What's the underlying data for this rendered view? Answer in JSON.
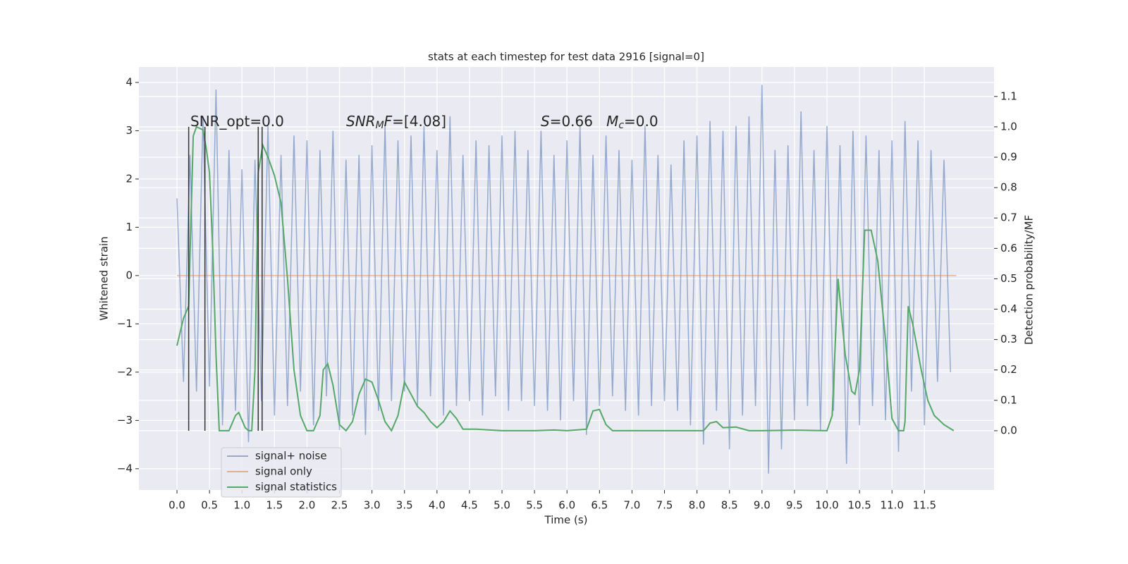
{
  "chart_data": {
    "type": "line",
    "title": "stats at each timestep for test data 2916 [signal=0]",
    "xlabel": "Time (s)",
    "ylabel": "Whitened strain",
    "y2label": "Detection probability/MF",
    "xlim": [
      -0.586,
      12.57
    ],
    "ylim": [
      -4.44,
      4.32
    ],
    "y2lim": [
      -0.195,
      1.197
    ],
    "grid": true,
    "legend": "lower left",
    "xticks": [
      {
        "value": 0,
        "label": "0.0"
      },
      {
        "value": 0.5,
        "label": "0.5"
      },
      {
        "value": 1,
        "label": "1.0"
      },
      {
        "value": 1.5,
        "label": "1.5"
      },
      {
        "value": 2,
        "label": "2.0"
      },
      {
        "value": 2.5,
        "label": "2.5"
      },
      {
        "value": 3,
        "label": "3.0"
      },
      {
        "value": 3.5,
        "label": "3.5"
      },
      {
        "value": 4,
        "label": "4.0"
      },
      {
        "value": 4.5,
        "label": "4.5"
      },
      {
        "value": 5,
        "label": "5.0"
      },
      {
        "value": 5.5,
        "label": "5.5"
      },
      {
        "value": 6,
        "label": "6.0"
      },
      {
        "value": 6.5,
        "label": "6.5"
      },
      {
        "value": 7,
        "label": "7.0"
      },
      {
        "value": 7.5,
        "label": "7.5"
      },
      {
        "value": 8,
        "label": "8.0"
      },
      {
        "value": 8.5,
        "label": "8.5"
      },
      {
        "value": 9,
        "label": "9.0"
      },
      {
        "value": 9.5,
        "label": "9.5"
      },
      {
        "value": 10,
        "label": "10.0"
      },
      {
        "value": 10.5,
        "label": "10.5"
      },
      {
        "value": 11,
        "label": "11.0"
      },
      {
        "value": 11.5,
        "label": "11.5"
      }
    ],
    "yticks": [
      {
        "value": -4,
        "label": "−4"
      },
      {
        "value": -3,
        "label": "−3"
      },
      {
        "value": -2,
        "label": "−2"
      },
      {
        "value": -1,
        "label": "−1"
      },
      0,
      1,
      2,
      3,
      4
    ],
    "y2ticks": [
      {
        "value": 0,
        "label": "0.0"
      },
      {
        "value": 0.1,
        "label": "0.1"
      },
      {
        "value": 0.2,
        "label": "0.2"
      },
      {
        "value": 0.3,
        "label": "0.3"
      },
      {
        "value": 0.4,
        "label": "0.4"
      },
      {
        "value": 0.5,
        "label": "0.5"
      },
      {
        "value": 0.6,
        "label": "0.6"
      },
      {
        "value": 0.7,
        "label": "0.7"
      },
      {
        "value": 0.8,
        "label": "0.8"
      },
      {
        "value": 0.9,
        "label": "0.9"
      },
      {
        "value": 1,
        "label": "1.0"
      },
      {
        "value": 1.1,
        "label": "1.1"
      }
    ],
    "annotations": [
      [
        {
          "text": "SNR_opt=0.0",
          "style": "normal"
        }
      ],
      [
        {
          "text": "SNR",
          "style": "italic"
        },
        {
          "text": "M",
          "style": "sub"
        },
        {
          "text": "F",
          "style": "italic"
        },
        {
          "text": "=[4.08]",
          "style": "normal"
        }
      ],
      [
        {
          "text": "S",
          "style": "italic"
        },
        {
          "text": "=0.66   ",
          "style": "normal"
        },
        {
          "text": "M",
          "style": "italic"
        },
        {
          "text": "c",
          "style": "sub"
        },
        {
          "text": "=0.0",
          "style": "normal"
        }
      ]
    ],
    "markers": {
      "color": "#333333",
      "x": [
        0.18,
        0.43,
        1.25,
        1.31
      ],
      "range": [
        0,
        1
      ],
      "axis": "y2"
    },
    "series": [
      {
        "name": "signal+ noise",
        "color": "#4c72b0",
        "opacity": 0.55,
        "x": [
          0,
          0.1,
          0.2,
          0.3,
          0.4,
          0.5,
          0.6,
          0.7,
          0.8,
          0.9,
          1,
          1.1,
          1.2,
          1.3,
          1.4,
          1.5,
          1.6,
          1.7,
          1.8,
          1.9,
          2,
          2.1,
          2.2,
          2.3,
          2.4,
          2.5,
          2.6,
          2.7,
          2.8,
          2.9,
          3,
          3.1,
          3.2,
          3.3,
          3.4,
          3.5,
          3.6,
          3.7,
          3.8,
          3.9,
          4,
          4.1,
          4.2,
          4.3,
          4.4,
          4.5,
          4.6,
          4.7,
          4.8,
          4.9,
          5,
          5.1,
          5.2,
          5.3,
          5.4,
          5.5,
          5.6,
          5.7,
          5.8,
          5.9,
          6,
          6.1,
          6.2,
          6.3,
          6.4,
          6.5,
          6.6,
          6.7,
          6.8,
          6.9,
          7,
          7.1,
          7.2,
          7.3,
          7.4,
          7.5,
          7.6,
          7.7,
          7.8,
          7.9,
          8,
          8.1,
          8.2,
          8.3,
          8.4,
          8.5,
          8.6,
          8.7,
          8.8,
          8.9,
          9,
          9.1,
          9.2,
          9.3,
          9.4,
          9.5,
          9.6,
          9.7,
          9.8,
          9.9,
          10,
          10.1,
          10.2,
          10.3,
          10.4,
          10.5,
          10.6,
          10.7,
          10.8,
          10.9,
          11,
          11.1,
          11.2,
          11.3,
          11.4,
          11.5,
          11.6,
          11.7,
          11.8,
          11.9
        ],
        "values": [
          1.6,
          -2.2,
          2.5,
          -2.4,
          3.3,
          -2.3,
          3.85,
          -3.1,
          2.6,
          -2.8,
          2.2,
          -3.45,
          2.4,
          -2.6,
          3.1,
          -2.9,
          2.5,
          -2.7,
          2.9,
          -2.4,
          2.8,
          -3.1,
          2.6,
          -2.5,
          3.0,
          -3.2,
          2.4,
          -2.9,
          2.5,
          -3.3,
          2.7,
          -2.8,
          3.1,
          -2.6,
          2.8,
          -2.4,
          2.9,
          -2.7,
          3.1,
          -2.5,
          2.6,
          -2.9,
          3.3,
          -2.7,
          2.5,
          -2.6,
          2.8,
          -2.9,
          2.7,
          -2.5,
          2.9,
          -2.8,
          3.0,
          -2.6,
          2.6,
          -2.7,
          3.0,
          -2.8,
          2.5,
          -3.0,
          2.8,
          -2.6,
          3.1,
          -3.3,
          2.5,
          -2.7,
          2.9,
          -2.5,
          2.6,
          -2.8,
          2.4,
          -2.9,
          3.1,
          -2.7,
          2.5,
          -2.6,
          2.3,
          -2.8,
          2.8,
          -3.1,
          2.9,
          -3.5,
          3.2,
          -2.8,
          3.0,
          -3.6,
          3.1,
          -2.9,
          3.3,
          -2.7,
          3.95,
          -4.1,
          2.6,
          -3.6,
          2.7,
          -3.0,
          3.4,
          -2.7,
          2.6,
          -3.2,
          3.1,
          -2.8,
          2.7,
          -3.9,
          3.0,
          -3.1,
          2.9,
          -2.7,
          2.6,
          -3.0,
          2.8,
          -3.65,
          3.2,
          -2.4,
          2.8,
          -3.1,
          2.6,
          -2.2,
          2.4,
          -2.0
        ]
      },
      {
        "name": "signal only",
        "color": "#dd8452",
        "opacity": 0.6,
        "x": [
          0,
          11.99
        ],
        "values": [
          0,
          0
        ]
      },
      {
        "name": "signal statistics",
        "color": "#55a868",
        "opacity": 1,
        "axis": "y2",
        "x": [
          0,
          0.1,
          0.18,
          0.25,
          0.3,
          0.4,
          0.45,
          0.5,
          0.55,
          0.6,
          0.65,
          0.7,
          0.8,
          0.9,
          0.95,
          1.05,
          1.1,
          1.15,
          1.2,
          1.25,
          1.32,
          1.4,
          1.5,
          1.6,
          1.7,
          1.8,
          1.9,
          2,
          2.1,
          2.2,
          2.25,
          2.32,
          2.4,
          2.5,
          2.6,
          2.7,
          2.8,
          2.9,
          3,
          3.1,
          3.2,
          3.3,
          3.4,
          3.5,
          3.6,
          3.7,
          3.8,
          3.9,
          4,
          4.1,
          4.2,
          4.3,
          4.4,
          4.6,
          5,
          5.5,
          5.8,
          6,
          6.3,
          6.4,
          6.5,
          6.6,
          6.7,
          7.5,
          8.1,
          8.2,
          8.3,
          8.4,
          8.6,
          8.8,
          9,
          9.5,
          10,
          10.08,
          10.17,
          10.28,
          10.38,
          10.43,
          10.5,
          10.58,
          10.68,
          10.78,
          10.9,
          11,
          11.1,
          11.18,
          11.2,
          11.25,
          11.32,
          11.45,
          11.55,
          11.65,
          11.8,
          11.95
        ],
        "values": [
          0.28,
          0.37,
          0.41,
          0.97,
          1.0,
          0.99,
          0.93,
          0.85,
          0.6,
          0.25,
          0.0,
          0.0,
          0.0,
          0.05,
          0.06,
          0.01,
          0.0,
          0.0,
          0.2,
          0.85,
          0.94,
          0.9,
          0.84,
          0.75,
          0.5,
          0.2,
          0.05,
          0.0,
          0.0,
          0.05,
          0.2,
          0.22,
          0.15,
          0.02,
          0.0,
          0.03,
          0.12,
          0.17,
          0.16,
          0.1,
          0.03,
          0.0,
          0.05,
          0.16,
          0.12,
          0.08,
          0.06,
          0.03,
          0.01,
          0.03,
          0.065,
          0.04,
          0.005,
          0.005,
          0.0,
          0.0,
          0.0025,
          0.0,
          0.005,
          0.065,
          0.07,
          0.02,
          0.0,
          0.0,
          0.0,
          0.025,
          0.03,
          0.01,
          0.012,
          0.0,
          0.0,
          0.002,
          0.0,
          0.05,
          0.5,
          0.25,
          0.13,
          0.12,
          0.2,
          0.66,
          0.66,
          0.56,
          0.3,
          0.04,
          0.0,
          0.0,
          0.03,
          0.41,
          0.35,
          0.2,
          0.1,
          0.05,
          0.02,
          0.0
        ]
      }
    ]
  }
}
